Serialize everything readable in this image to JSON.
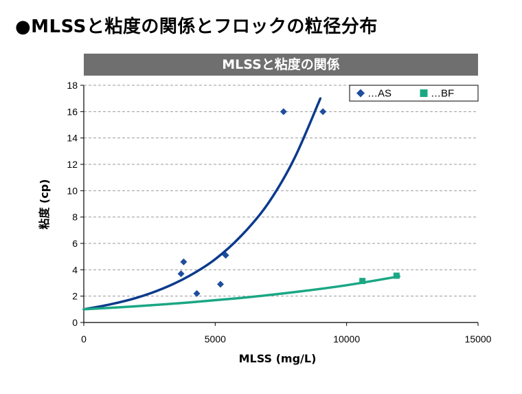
{
  "page": {
    "title": "●MLSSと粘度の関係とフロックの粒径分布"
  },
  "chart_data": {
    "type": "scatter",
    "title": "MLSSと粘度の関係",
    "xlabel": "MLSS (mg/L)",
    "ylabel": "粘度 (cp)",
    "xlim": [
      0,
      15000
    ],
    "ylim": [
      0,
      18
    ],
    "x_ticks": [
      0,
      5000,
      10000,
      15000
    ],
    "y_ticks": [
      0,
      2,
      4,
      6,
      8,
      10,
      12,
      14,
      16,
      18
    ],
    "grid": "horizontal dashed",
    "legend_position": "top-right",
    "series": [
      {
        "name": "…AS",
        "marker": "diamond",
        "color": "#1f4e9c",
        "points": [
          {
            "x": 3700,
            "y": 3.7
          },
          {
            "x": 3800,
            "y": 4.6
          },
          {
            "x": 4300,
            "y": 2.2
          },
          {
            "x": 5200,
            "y": 2.9
          },
          {
            "x": 5400,
            "y": 5.1
          },
          {
            "x": 7600,
            "y": 16.0
          },
          {
            "x": 9100,
            "y": 16.0
          }
        ],
        "trendline": {
          "type": "exponential",
          "color": "#0b3a8c",
          "x_range": [
            0,
            9000
          ],
          "points": [
            {
              "x": 0,
              "y": 1.0
            },
            {
              "x": 1000,
              "y": 1.37
            },
            {
              "x": 2000,
              "y": 1.87
            },
            {
              "x": 3000,
              "y": 2.57
            },
            {
              "x": 4000,
              "y": 3.52
            },
            {
              "x": 5000,
              "y": 4.8
            },
            {
              "x": 6000,
              "y": 6.6
            },
            {
              "x": 7000,
              "y": 9.0
            },
            {
              "x": 8000,
              "y": 12.4
            },
            {
              "x": 9000,
              "y": 17.0
            }
          ]
        }
      },
      {
        "name": "…BF",
        "marker": "square",
        "color": "#1aa784",
        "points": [
          {
            "x": 10600,
            "y": 3.15
          },
          {
            "x": 11900,
            "y": 3.55
          }
        ],
        "trendline": {
          "type": "exponential",
          "color": "#1aa784",
          "x_range": [
            0,
            12000
          ],
          "points": [
            {
              "x": 0,
              "y": 1.0
            },
            {
              "x": 2000,
              "y": 1.23
            },
            {
              "x": 4000,
              "y": 1.52
            },
            {
              "x": 6000,
              "y": 1.87
            },
            {
              "x": 8000,
              "y": 2.3
            },
            {
              "x": 10000,
              "y": 2.83
            },
            {
              "x": 12000,
              "y": 3.5
            }
          ]
        }
      }
    ]
  }
}
